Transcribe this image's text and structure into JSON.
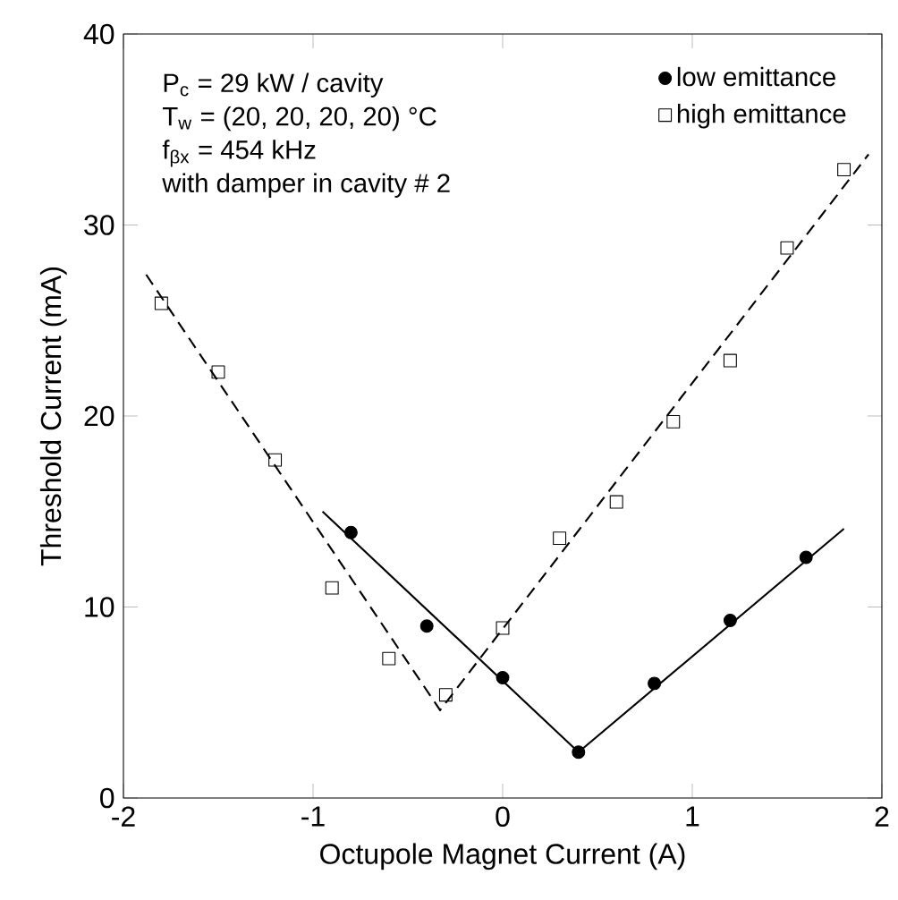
{
  "chart_data": {
    "type": "scatter",
    "xlabel": "Octupole Magnet Current (A)",
    "ylabel": "Threshold Current (mA)",
    "xlim": [
      -2,
      2
    ],
    "ylim": [
      0,
      40
    ],
    "xticks": [
      -2,
      -1,
      0,
      1,
      2
    ],
    "yticks": [
      0,
      10,
      20,
      30,
      40
    ],
    "grid": false,
    "legend": "top right",
    "annotations": [
      "P$_{c}$ = 29 kW / cavity",
      "T$_{w}$ = (20, 20, 20, 20) °C",
      "f$_{βx}$ = 454 kHz",
      "with damper in cavity # 2"
    ],
    "series": [
      {
        "name": "low emittance",
        "marker": "circle",
        "color": "#000000",
        "x": [
          -0.8,
          -0.4,
          0,
          0.4,
          0.8,
          1.2,
          1.6
        ],
        "values": [
          13.9,
          9.0,
          6.3,
          2.4,
          6.0,
          9.3,
          12.6
        ]
      },
      {
        "name": "high emittance",
        "marker": "square",
        "color": "#000000",
        "x": [
          -1.8,
          -1.5,
          -1.2,
          -0.9,
          -0.6,
          -0.3,
          0,
          0.3,
          0.6,
          0.9,
          1.2,
          1.5,
          1.8
        ],
        "values": [
          25.9,
          22.3,
          17.7,
          11.0,
          7.3,
          5.4,
          8.9,
          13.6,
          15.5,
          19.7,
          22.9,
          28.8,
          32.9
        ]
      },
      {
        "type": "line",
        "line_style": "solid",
        "marker": "none",
        "color": "#000000",
        "x": [
          -0.95,
          0.4,
          1.8
        ],
        "values": [
          15.0,
          2.4,
          14.1
        ]
      },
      {
        "type": "line",
        "line_style": "dashed",
        "marker": "none",
        "color": "#000000",
        "x": [
          -1.88,
          -0.33,
          1.93
        ],
        "values": [
          27.4,
          4.6,
          33.7
        ]
      }
    ]
  }
}
